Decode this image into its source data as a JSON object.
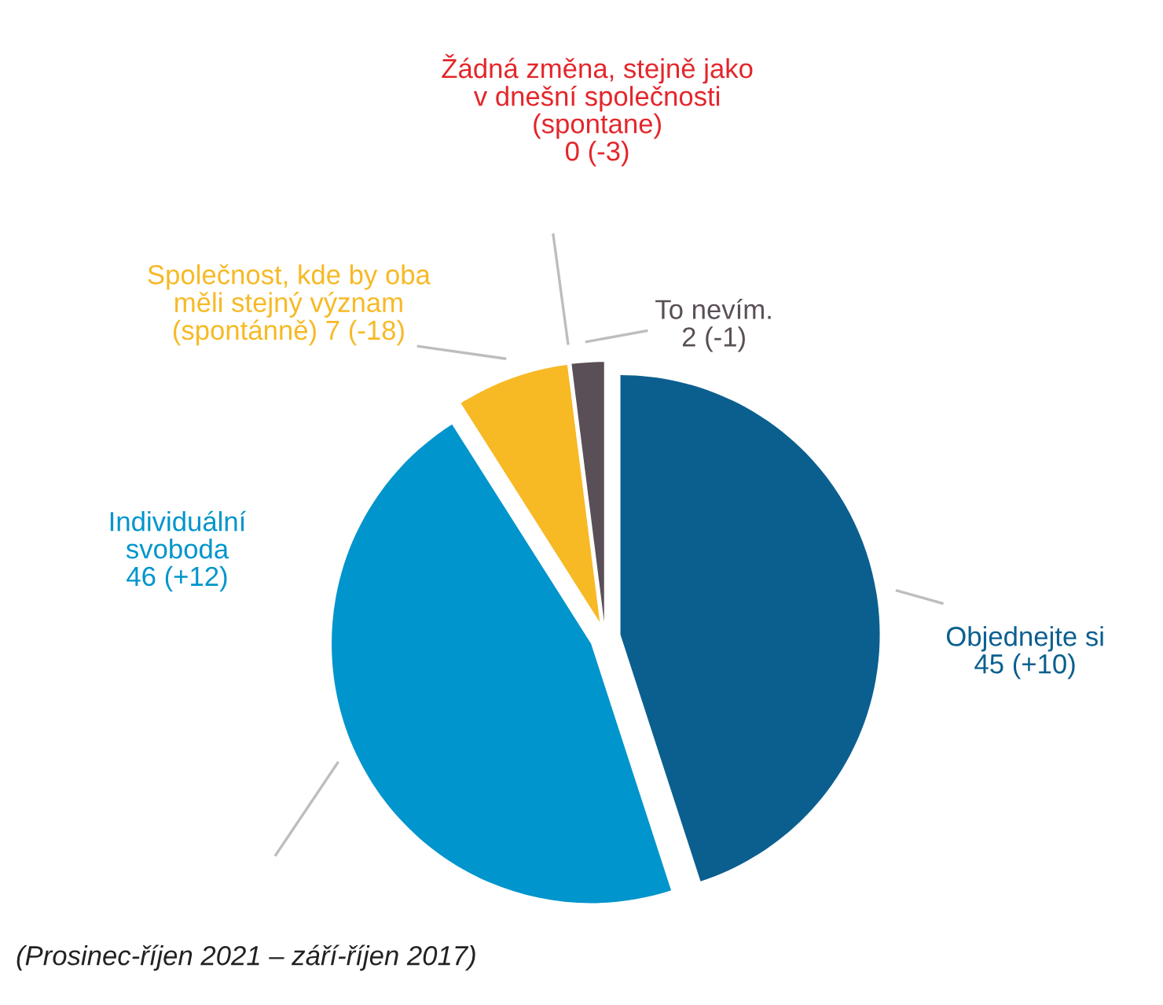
{
  "chart_data": {
    "type": "pie",
    "categories": [
      "Objednejte si",
      "Individuální svoboda",
      "Společnost, kde by oba měli stejný význam (spontánně)",
      "Žádná změna, stejně jako v dnešní společnosti (spontane)",
      "To nevím."
    ],
    "values": [
      45,
      46,
      7,
      0,
      2
    ],
    "value_labels": [
      "45 (+10)",
      "46 (+12)",
      "7 (-18)",
      "0 (-3)",
      "2 (-1)"
    ],
    "colors": [
      "#0b5f8f",
      "#0095cc",
      "#f7b924",
      "#e3262b",
      "#5a4f57"
    ],
    "annotations": [
      "(Prosinec-říjen 2021 – září-říjen 2017)"
    ]
  }
}
